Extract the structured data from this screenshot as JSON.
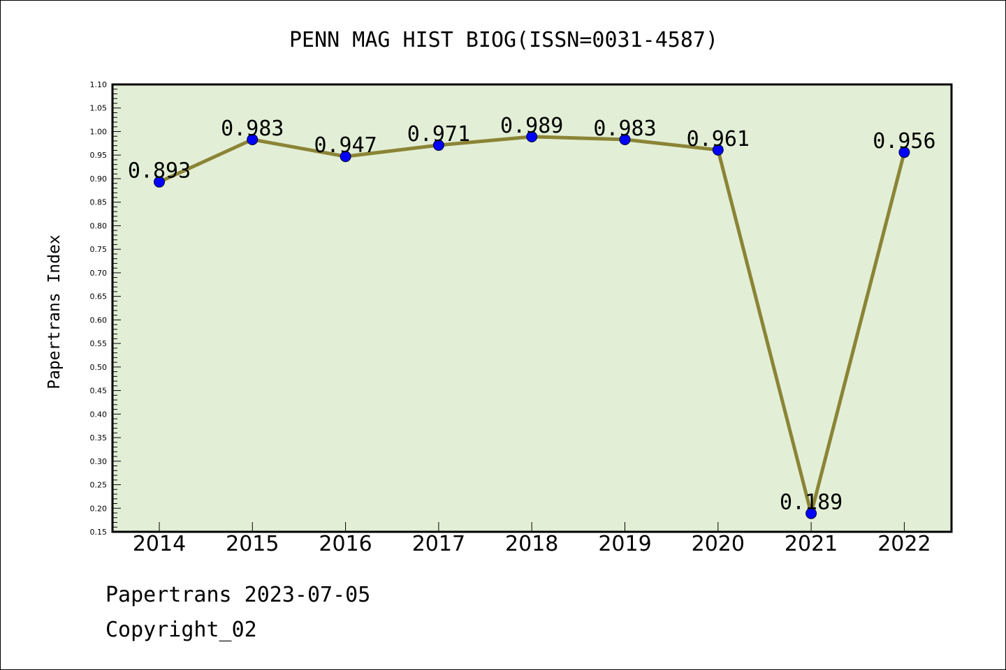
{
  "chart_data": {
    "type": "line",
    "title": "PENN MAG HIST BIOG(ISSN=0031-4587)",
    "xlabel": "",
    "ylabel": "Papertrans Index",
    "categories": [
      "2014",
      "2015",
      "2016",
      "2017",
      "2018",
      "2019",
      "2020",
      "2021",
      "2022"
    ],
    "series": [
      {
        "values": [
          0.893,
          0.983,
          0.947,
          0.971,
          0.989,
          0.983,
          0.961,
          0.189,
          0.956
        ]
      }
    ],
    "data_labels": [
      "0.893",
      "0.983",
      "0.947",
      "0.971",
      "0.989",
      "0.983",
      "0.961",
      "0.189",
      "0.956"
    ],
    "ylim": [
      0.15,
      1.1
    ],
    "y_ticks": [
      "0.15",
      "0.20",
      "0.25",
      "0.30",
      "0.35",
      "0.40",
      "0.45",
      "0.50",
      "0.55",
      "0.60",
      "0.65",
      "0.70",
      "0.75",
      "0.80",
      "0.85",
      "0.90",
      "0.95",
      "1.00",
      "1.05",
      "1.10"
    ],
    "grid": false,
    "legend": "none",
    "colors": {
      "plot_background": "#e2efd6",
      "line": "#8b8436",
      "marker": "#0000ff"
    }
  },
  "footer": {
    "line1": "Papertrans 2023-07-05",
    "line2": "Copyright_02"
  }
}
